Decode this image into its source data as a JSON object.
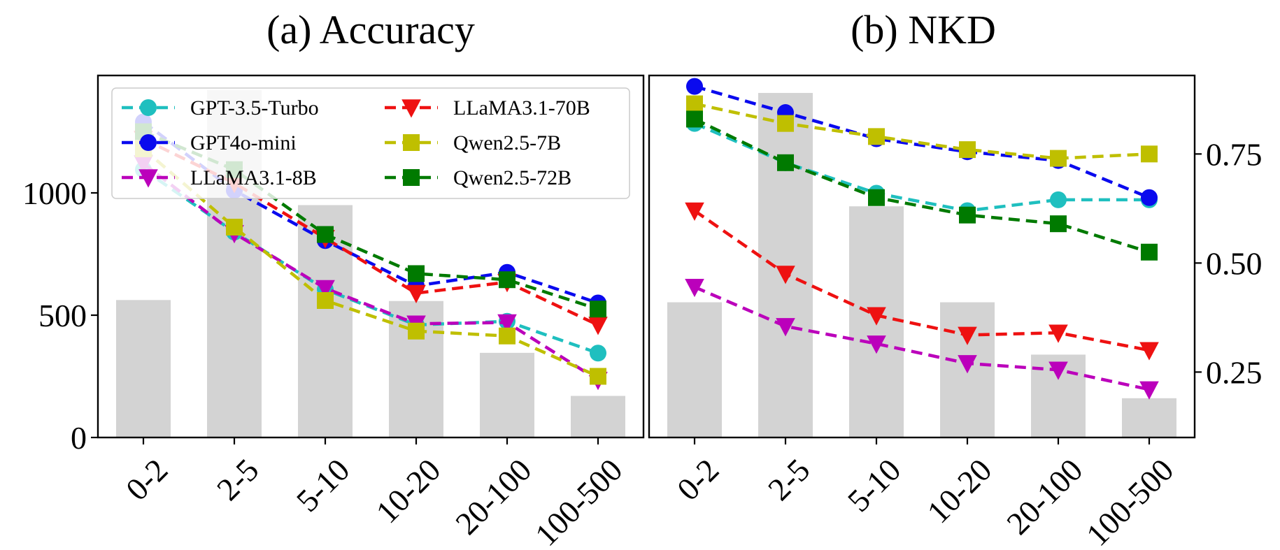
{
  "chart_data": [
    {
      "type": "bar+line",
      "title": "(a) Accuracy",
      "categories": [
        "0-2",
        "2-5",
        "5-10",
        "10-20",
        "20-100",
        "100-500"
      ],
      "bar_values": [
        562,
        1420,
        950,
        558,
        346,
        170
      ],
      "bar_color": "#d3d3d3",
      "yticks": [
        0,
        500,
        1000
      ],
      "ylim": [
        0,
        1480
      ],
      "series": [
        {
          "name": "GPT-3.5-Turbo",
          "color": "#1fbfbf",
          "marker": "circle",
          "values": [
            1095,
            840,
            605,
            460,
            475,
            345
          ]
        },
        {
          "name": "GPT4o-mini",
          "color": "#0a0aee",
          "marker": "circle",
          "values": [
            1290,
            1010,
            805,
            620,
            675,
            550
          ]
        },
        {
          "name": "LLaMA3.1-8B",
          "color": "#bb00bb",
          "marker": "triangle-down",
          "values": [
            1120,
            835,
            610,
            465,
            470,
            235
          ]
        },
        {
          "name": "LLaMA3.1-70B",
          "color": "#ee1111",
          "marker": "triangle-down",
          "values": [
            1220,
            1040,
            815,
            590,
            635,
            460
          ]
        },
        {
          "name": "Qwen2.5-7B",
          "color": "#bfbf00",
          "marker": "square",
          "values": [
            1180,
            860,
            560,
            435,
            415,
            250
          ]
        },
        {
          "name": "Qwen2.5-72B",
          "color": "#007a00",
          "marker": "square",
          "values": [
            1250,
            1095,
            830,
            670,
            645,
            525
          ]
        }
      ],
      "legend": {
        "placement": "top-left",
        "columns": 2
      }
    },
    {
      "type": "bar+line",
      "title": "(b) NKD",
      "categories": [
        "0-2",
        "2-5",
        "5-10",
        "10-20",
        "20-100",
        "100-500"
      ],
      "bar_values": [
        0.41,
        0.89,
        0.63,
        0.41,
        0.29,
        0.19
      ],
      "bar_color": "#d3d3d3",
      "yticks": [
        0.25,
        0.5,
        0.75
      ],
      "yticks_labels": [
        "0.25",
        "0.50",
        "0.75"
      ],
      "y_axis_side": "right",
      "ylim": [
        0.1,
        0.93
      ],
      "series": [
        {
          "name": "GPT-3.5-Turbo",
          "color": "#1fbfbf",
          "marker": "circle",
          "values": [
            0.82,
            0.73,
            0.66,
            0.62,
            0.645,
            0.645
          ]
        },
        {
          "name": "GPT4o-mini",
          "color": "#0a0aee",
          "marker": "circle",
          "values": [
            0.905,
            0.845,
            0.785,
            0.755,
            0.735,
            0.65
          ]
        },
        {
          "name": "LLaMA3.1-8B",
          "color": "#bb00bb",
          "marker": "triangle-down",
          "values": [
            0.445,
            0.355,
            0.315,
            0.27,
            0.255,
            0.21
          ]
        },
        {
          "name": "LLaMA3.1-70B",
          "color": "#ee1111",
          "marker": "triangle-down",
          "values": [
            0.62,
            0.475,
            0.38,
            0.335,
            0.34,
            0.3
          ]
        },
        {
          "name": "Qwen2.5-7B",
          "color": "#bfbf00",
          "marker": "square",
          "values": [
            0.865,
            0.82,
            0.79,
            0.76,
            0.74,
            0.75
          ]
        },
        {
          "name": "Qwen2.5-72B",
          "color": "#007a00",
          "marker": "square",
          "values": [
            0.83,
            0.73,
            0.65,
            0.61,
            0.59,
            0.525
          ]
        }
      ]
    }
  ]
}
